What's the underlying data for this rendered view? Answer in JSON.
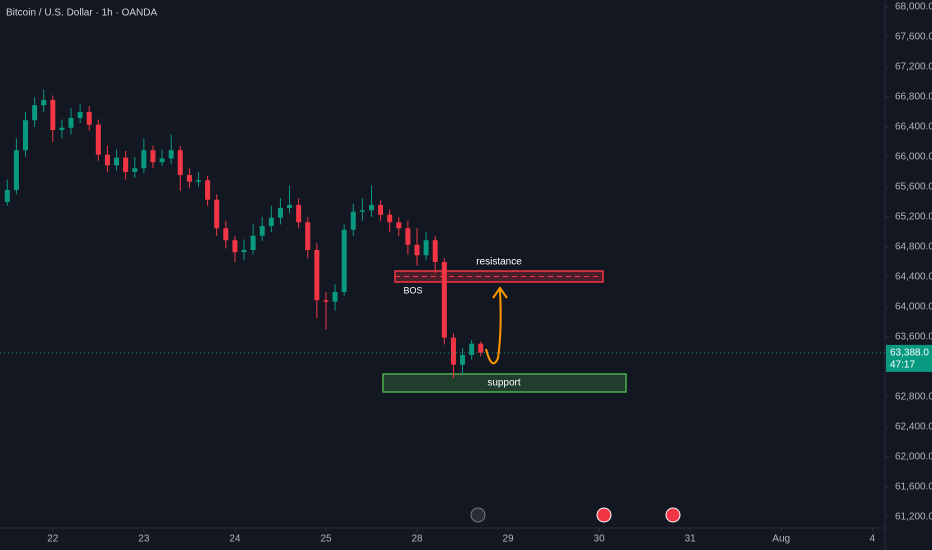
{
  "chart_data": {
    "type": "candlestick",
    "title": "Bitcoin / U.S. Dollar · 1h · OANDA",
    "x": [
      -0.5,
      -0.4,
      -0.3,
      -0.2,
      -0.1,
      0.0,
      0.1,
      0.2,
      0.3,
      0.4,
      0.5,
      0.6,
      0.7,
      0.8,
      0.9,
      1.0,
      1.1,
      1.2,
      1.3,
      1.4,
      1.5,
      1.6,
      1.7,
      1.8,
      1.9,
      2.0,
      2.1,
      2.2,
      2.3,
      2.4,
      2.5,
      2.6,
      2.7,
      2.8,
      2.9,
      3.0,
      3.1,
      3.2,
      3.3,
      3.4,
      3.5,
      3.6,
      3.7,
      3.8,
      3.9,
      4.0,
      4.1,
      4.2,
      4.3,
      4.4,
      4.5,
      4.6,
      4.7
    ],
    "series": [
      {
        "name": "open",
        "values": [
          65400,
          65560,
          66090,
          66490,
          66690,
          66760,
          66360,
          66390,
          66520,
          66600,
          66430,
          66030,
          65890,
          65990,
          65800,
          65850,
          66090,
          65930,
          65980,
          66090,
          65760,
          65670,
          65690,
          65430,
          65050,
          64890,
          64730,
          64760,
          64950,
          65080,
          65190,
          65320,
          65360,
          65130,
          64760,
          64090,
          64070,
          64200,
          65030,
          65270,
          65290,
          65360,
          65230,
          65130,
          65050,
          64830,
          64690,
          64890,
          64600,
          63590,
          63230,
          63360,
          63510
        ]
      },
      {
        "name": "high",
        "values": [
          65700,
          66250,
          66600,
          66800,
          66900,
          66820,
          66500,
          66650,
          66700,
          66680,
          66500,
          66150,
          66100,
          66080,
          66000,
          66250,
          66150,
          66100,
          66300,
          66150,
          65850,
          65800,
          65750,
          65500,
          65150,
          64950,
          64900,
          65100,
          65200,
          65350,
          65450,
          65620,
          65450,
          65200,
          64850,
          64200,
          64300,
          65100,
          65380,
          65450,
          65620,
          65420,
          65300,
          65200,
          65150,
          65050,
          65000,
          64950,
          64650,
          63650,
          63450,
          63560,
          63540
        ]
      },
      {
        "name": "low",
        "values": [
          65350,
          65500,
          66000,
          66400,
          66600,
          66200,
          66250,
          66300,
          66450,
          66350,
          65950,
          65800,
          65820,
          65700,
          65720,
          65780,
          65850,
          65880,
          65900,
          65550,
          65580,
          65600,
          65350,
          64950,
          64780,
          64600,
          64620,
          64700,
          64880,
          65000,
          65100,
          65250,
          65050,
          64650,
          63850,
          63700,
          63950,
          64150,
          64950,
          65150,
          65200,
          65150,
          65000,
          64950,
          64700,
          64550,
          64620,
          64450,
          63500,
          63050,
          63100,
          63300,
          63340
        ]
      },
      {
        "name": "close",
        "values": [
          65560,
          66090,
          66490,
          66690,
          66760,
          66360,
          66390,
          66520,
          66600,
          66430,
          66030,
          65890,
          65990,
          65800,
          65850,
          66090,
          65930,
          65980,
          66090,
          65760,
          65670,
          65690,
          65430,
          65050,
          64890,
          64730,
          64760,
          64950,
          65080,
          65190,
          65320,
          65360,
          65130,
          64760,
          64090,
          64070,
          64200,
          65030,
          65270,
          65290,
          65360,
          65230,
          65130,
          65050,
          64830,
          64690,
          64890,
          64600,
          63590,
          63230,
          63360,
          63510,
          63390
        ]
      }
    ],
    "up_color": "#089981",
    "down_color": "#f23645",
    "xlim": [
      -0.58,
      9.14
    ],
    "xticks": [
      {
        "value": 0,
        "label": "22"
      },
      {
        "value": 1,
        "label": "23"
      },
      {
        "value": 2,
        "label": "24"
      },
      {
        "value": 3,
        "label": "25"
      },
      {
        "value": 4,
        "label": "28"
      },
      {
        "value": 5,
        "label": "29"
      },
      {
        "value": 6,
        "label": "30"
      },
      {
        "value": 7,
        "label": "31"
      },
      {
        "value": 8,
        "label": "Aug"
      },
      {
        "value": 9,
        "label": "4"
      }
    ],
    "ylim": [
      61053,
      68093
    ],
    "yticks": [
      {
        "value": 61200,
        "label": "61,200.0"
      },
      {
        "value": 61600,
        "label": "61,600.0"
      },
      {
        "value": 62000,
        "label": "62,000.0"
      },
      {
        "value": 62400,
        "label": "62,400.0"
      },
      {
        "value": 62800,
        "label": "62,800.0"
      },
      {
        "value": 63200,
        "label": "63,200.0"
      },
      {
        "value": 63600,
        "label": "63,600.0"
      },
      {
        "value": 64000,
        "label": "64,000.0"
      },
      {
        "value": 64400,
        "label": "64,400.0"
      },
      {
        "value": 64800,
        "label": "64,800.0"
      },
      {
        "value": 65200,
        "label": "65,200.0"
      },
      {
        "value": 65600,
        "label": "65,600.0"
      },
      {
        "value": 66000,
        "label": "66,000.0"
      },
      {
        "value": 66400,
        "label": "66,400.0"
      },
      {
        "value": 66800,
        "label": "66,800.0"
      },
      {
        "value": 67200,
        "label": "67,200.0"
      },
      {
        "value": 67600,
        "label": "67,600.0"
      },
      {
        "value": 68000,
        "label": "68,000.0"
      }
    ],
    "last_price": {
      "value": 63388,
      "label": "63,388.0"
    },
    "countdown": "47:17",
    "annotations": {
      "resistance": "resistance",
      "support": "support",
      "bos": "BOS"
    }
  }
}
